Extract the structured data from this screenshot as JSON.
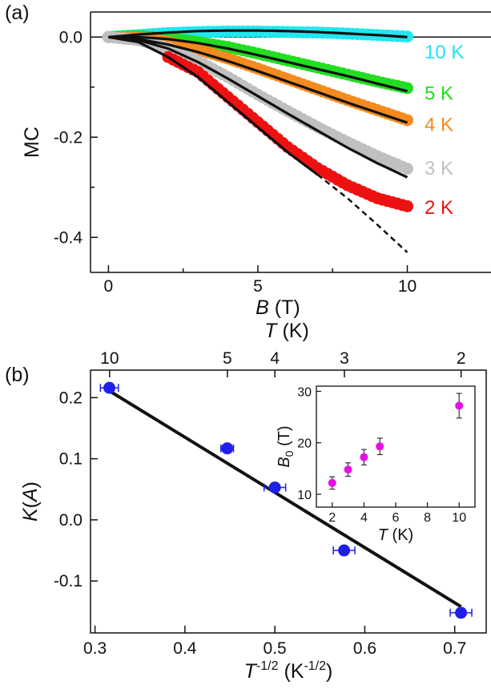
{
  "panel_a_label": "(a)",
  "panel_b_label": "(b)",
  "chart_data": [
    {
      "type": "scatter",
      "panel": "(a)",
      "xlabel": {
        "italic": "B",
        "rest": " (T)"
      },
      "ylabel": "MC",
      "xlim": [
        -0.6,
        12.8
      ],
      "ylim": [
        -0.47,
        0.05
      ],
      "xticks": [
        0,
        5,
        10
      ],
      "yticks": [
        0.0,
        -0.2,
        -0.4
      ],
      "ytick_labels": [
        "0.0",
        "-0.2",
        "-0.4"
      ],
      "minor_yticks": [
        -0.1,
        -0.3
      ],
      "minor_xticks": [
        2.5,
        7.5
      ],
      "zero_line": true,
      "series": [
        {
          "name": "10 K",
          "color": "#22e6f0",
          "label_y": -0.03,
          "x": [
            0,
            1,
            2,
            3,
            4,
            5,
            6,
            7,
            8,
            9,
            10
          ],
          "y": [
            0.0,
            0.004,
            0.008,
            0.01,
            0.011,
            0.011,
            0.01,
            0.009,
            0.007,
            0.004,
            0.001
          ],
          "fit_x": [
            0,
            1,
            2,
            3,
            4,
            5,
            6,
            7,
            8,
            9,
            10
          ],
          "fit_y": [
            0.0,
            0.005,
            0.009,
            0.012,
            0.013,
            0.013,
            0.012,
            0.01,
            0.007,
            0.004,
            0.0
          ]
        },
        {
          "name": "5 K",
          "color": "#22dd22",
          "label_y": -0.112,
          "x": [
            0,
            1,
            2,
            3,
            4,
            5,
            6,
            7,
            8,
            9,
            10
          ],
          "y": [
            0.0,
            0.002,
            -0.002,
            -0.01,
            -0.02,
            -0.033,
            -0.047,
            -0.061,
            -0.075,
            -0.089,
            -0.102
          ],
          "fit_x": [
            0,
            1,
            2,
            3,
            4,
            5,
            6,
            7,
            8,
            9,
            10
          ],
          "fit_y": [
            0.0,
            0.0,
            -0.004,
            -0.012,
            -0.023,
            -0.036,
            -0.05,
            -0.064,
            -0.078,
            -0.093,
            -0.108
          ]
        },
        {
          "name": "4 K",
          "color": "#f58a1e",
          "label_y": -0.175,
          "x": [
            0,
            1,
            2,
            3,
            4,
            5,
            6,
            7,
            8,
            9,
            10
          ],
          "y": [
            0.0,
            -0.001,
            -0.01,
            -0.025,
            -0.043,
            -0.063,
            -0.084,
            -0.105,
            -0.126,
            -0.146,
            -0.166
          ],
          "fit_x": [
            0,
            1,
            2,
            3,
            4,
            5,
            6,
            7,
            8,
            9,
            10
          ],
          "fit_y": [
            0.0,
            -0.004,
            -0.015,
            -0.03,
            -0.048,
            -0.068,
            -0.089,
            -0.11,
            -0.131,
            -0.151,
            -0.171
          ]
        },
        {
          "name": "3 K",
          "color": "#c0c0c0",
          "label_y": -0.262,
          "x": [
            0,
            1,
            2,
            3,
            4,
            5,
            6,
            7,
            8,
            9,
            10
          ],
          "y": [
            0.0,
            -0.006,
            -0.022,
            -0.048,
            -0.08,
            -0.115,
            -0.148,
            -0.18,
            -0.21,
            -0.238,
            -0.263
          ],
          "fit_x": [
            0,
            1,
            2,
            3,
            4,
            5,
            6,
            7,
            8,
            9,
            10
          ],
          "fit_y": [
            0.0,
            -0.006,
            -0.023,
            -0.05,
            -0.083,
            -0.118,
            -0.153,
            -0.187,
            -0.221,
            -0.252,
            -0.28
          ]
        },
        {
          "name": "2 K",
          "color": "#ee1111",
          "label_y": -0.34,
          "x": [
            2,
            3,
            4,
            5,
            6,
            7,
            8,
            9,
            10
          ],
          "y": [
            -0.04,
            -0.07,
            -0.12,
            -0.17,
            -0.22,
            -0.262,
            -0.296,
            -0.322,
            -0.338
          ],
          "fit_x": [
            0,
            1,
            2,
            3,
            4,
            5,
            6,
            7
          ],
          "fit_y": [
            0.0,
            -0.01,
            -0.04,
            -0.08,
            -0.13,
            -0.18,
            -0.23,
            -0.275
          ],
          "fit_dashed_x": [
            7,
            8,
            9,
            10
          ],
          "fit_dashed_y": [
            -0.275,
            -0.322,
            -0.375,
            -0.43
          ]
        }
      ]
    },
    {
      "type": "scatter",
      "panel": "(b)",
      "xlabel": {
        "italic": "T",
        "sup": "-1/2",
        "rest": " (K",
        "rest_sup": "-1/2",
        "close": ")"
      },
      "ylabel": {
        "italic": "K",
        "rest": "(",
        "italic2": "A",
        "close": ")"
      },
      "top_xlabel": {
        "italic": "T",
        "rest": " (K)"
      },
      "xlim": [
        0.295,
        0.735
      ],
      "ylim": [
        -0.185,
        0.245
      ],
      "xticks": [
        0.3,
        0.4,
        0.5,
        0.6,
        0.7
      ],
      "xtick_labels": [
        "0.3",
        "0.4",
        "0.5",
        "0.6",
        "0.7"
      ],
      "yticks": [
        0.2,
        0.1,
        0.0,
        -0.1
      ],
      "ytick_labels": [
        "0.2",
        "0.1",
        "0.0",
        "-0.1"
      ],
      "top_xticks_T": [
        10,
        5,
        4,
        3,
        2
      ],
      "point_color": "#1f1fe8",
      "x": [
        0.316,
        0.447,
        0.5,
        0.577,
        0.707
      ],
      "y": [
        0.216,
        0.117,
        0.053,
        -0.05,
        -0.152
      ],
      "xerr": [
        0.01,
        0.007,
        0.012,
        0.012,
        0.012
      ],
      "fit_x": [
        0.316,
        0.707
      ],
      "fit_y": [
        0.211,
        -0.142
      ],
      "inset": {
        "type": "scatter",
        "xlabel": {
          "italic": "T",
          "rest": " (K)"
        },
        "ylabel": {
          "italic": "B",
          "sub": "0",
          "rest": " (T)"
        },
        "xlim": [
          1,
          11
        ],
        "ylim": [
          7.5,
          31
        ],
        "xticks": [
          2,
          4,
          6,
          8,
          10
        ],
        "yticks": [
          10,
          20,
          30
        ],
        "point_color": "#e610e6",
        "x": [
          2,
          3,
          4,
          5,
          10
        ],
        "y": [
          12.2,
          14.8,
          17.2,
          19.3,
          27.2
        ],
        "yerr": [
          1.2,
          1.3,
          1.5,
          1.6,
          2.4
        ]
      }
    }
  ]
}
